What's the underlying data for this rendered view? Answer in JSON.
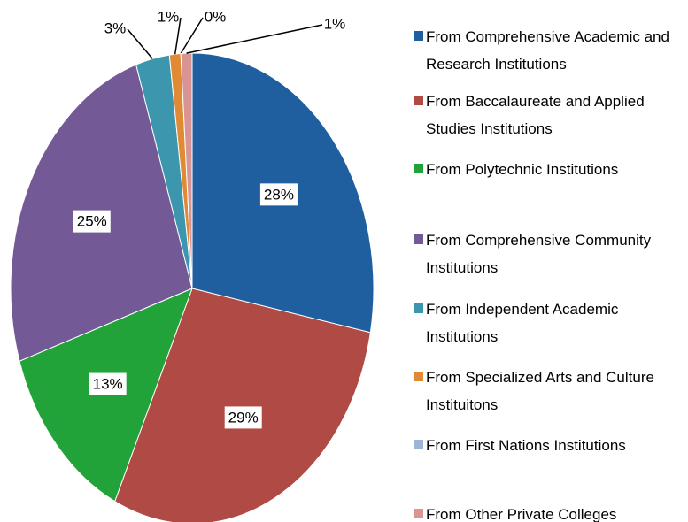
{
  "chart_data": {
    "type": "pie",
    "categories": [
      "From Comprehensive Academic and Research Institutions",
      "From Baccalaureate and Applied Studies Institutions",
      "From Polytechnic Institutions",
      "From Comprehensive Community Institutions",
      "From Independent Academic Institutions",
      "From Specialized Arts and Culture Instituitons",
      "From First Nations Institutions",
      "From Other Private Colleges"
    ],
    "values": [
      28,
      29,
      13,
      25,
      3,
      1,
      0,
      1
    ],
    "value_labels": [
      "28%",
      "29%",
      "13%",
      "25%",
      "3%",
      "1%",
      "0%",
      "1%"
    ],
    "colors": [
      "#1f5fa0",
      "#b04a45",
      "#22a33a",
      "#735a96",
      "#3c96ae",
      "#e08a35",
      "#9fb3d6",
      "#d99594"
    ],
    "legend": "right"
  }
}
